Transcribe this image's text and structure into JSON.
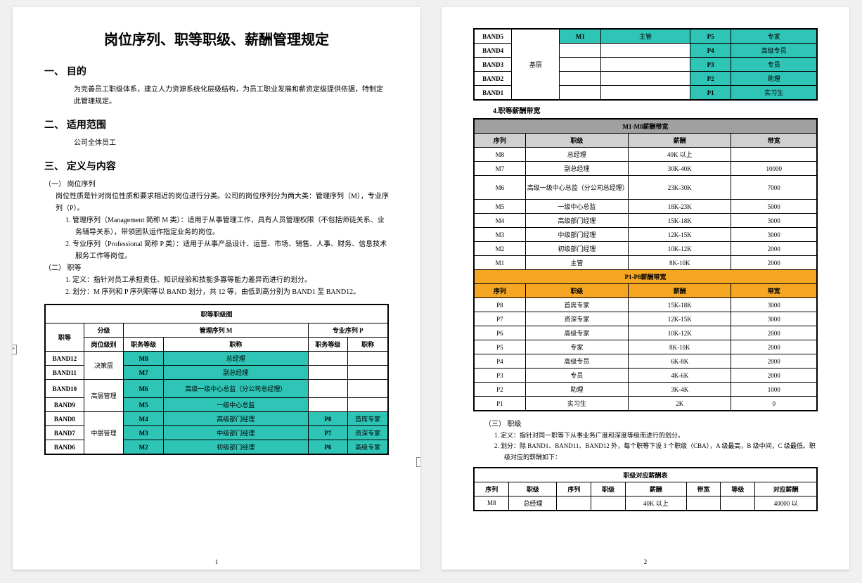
{
  "title": "岗位序列、职等职级、薪酬管理规定",
  "sec1": {
    "h": "一、 目的",
    "p": "为完善员工职级体系，建立人力资源系统化层级结构，为员工职业发展和薪资定级提供依据，特制定此管理规定。"
  },
  "sec2": {
    "h": "二、 适用范围",
    "p": "公司全体员工"
  },
  "sec3": {
    "h": "三、 定义与内容",
    "a_h": "（一） 岗位序列",
    "a_p": "岗位性质是针对岗位性质和要求相近的岗位进行分类。公司的岗位序列分为两大类：管理序列（M），专业序列（P）。",
    "a1": "1. 管理序列（Management 简称 M 类）：适用于从事管理工作，具有人员管理权限（不包括师徒关系、业务辅导关系），带领团队运作指定业务的岗位。",
    "a2": "2. 专业序列（Professional 简称 P 类）：适用于从事产品设计、运营、市场、销售、人事、财务、信息技术服务工作等岗位。",
    "b_h": "（二） 职等",
    "b1": "1. 定义：指针对员工承担责任、知识经验和技能多寡等能力差异而进行的划分。",
    "b2": "2. 划分：M 序列和 P 序列职等以 BAND 划分，共 12 等，由低到高分别为 BAND1 至 BAND12。"
  },
  "tableA": {
    "caption": "职等职级图",
    "h_band": "职等",
    "h_group": "分级",
    "h_mgmt": "管理序列 M",
    "h_prof": "专业序列 P",
    "h_level": "岗位级别",
    "h_jobgrade": "职务等级",
    "h_jobname": "职称",
    "g_decision": "决策层",
    "g_senior": "高层管理",
    "g_mid": "中层管理",
    "g_base": "基层",
    "rows": {
      "b12": {
        "m": "M8",
        "mt": "总经理"
      },
      "b11": {
        "m": "M7",
        "mt": "副总经理"
      },
      "b10": {
        "m": "M6",
        "mt": "高级一级中心总监（分公司总经理）"
      },
      "b9": {
        "m": "M5",
        "mt": "一级中心总监"
      },
      "b8": {
        "m": "M4",
        "mt": "高级部门经理",
        "p": "P8",
        "pt": "首席专家"
      },
      "b7": {
        "m": "M3",
        "mt": "中级部门经理",
        "p": "P7",
        "pt": "资深专家"
      },
      "b6": {
        "m": "M2",
        "mt": "初级部门经理",
        "p": "P6",
        "pt": "高级专家"
      },
      "b5": {
        "m": "M1",
        "mt": "主管",
        "p": "P5",
        "pt": "专家"
      },
      "b4": {
        "p": "P4",
        "pt": "高级专员"
      },
      "b3": {
        "p": "P3",
        "pt": "专员"
      },
      "b2": {
        "p": "P2",
        "pt": "助理"
      },
      "b1": {
        "p": "P1",
        "pt": "实习生"
      }
    },
    "colors": {
      "teal": "#2ec4b6",
      "border": "#000000"
    }
  },
  "sec4cap": "4.职等薪酬带宽",
  "tableB": {
    "title_m": "M1-M8薪酬带宽",
    "title_p": "P1-P8薪酬带宽",
    "h_seq": "序列",
    "h_grade": "职级",
    "h_salary": "薪酬",
    "h_band": "带宽",
    "m": [
      {
        "seq": "M8",
        "grade": "总经理",
        "salary": "40K 以上",
        "band": ""
      },
      {
        "seq": "M7",
        "grade": "副总经理",
        "salary": "30K-40K",
        "band": "10000"
      },
      {
        "seq": "M6",
        "grade": "高级一级中心总监（分公司总经理）",
        "salary": "23K-30K",
        "band": "7000"
      },
      {
        "seq": "M5",
        "grade": "一级中心总监",
        "salary": "18K-23K",
        "band": "5000"
      },
      {
        "seq": "M4",
        "grade": "高级部门经理",
        "salary": "15K-18K",
        "band": "3000"
      },
      {
        "seq": "M3",
        "grade": "中级部门经理",
        "salary": "12K-15K",
        "band": "3000"
      },
      {
        "seq": "M2",
        "grade": "初级部门经理",
        "salary": "10K-12K",
        "band": "2000"
      },
      {
        "seq": "M1",
        "grade": "主管",
        "salary": "8K-10K",
        "band": "2000"
      }
    ],
    "p": [
      {
        "seq": "P8",
        "grade": "首席专家",
        "salary": "15K-18K",
        "band": "3000"
      },
      {
        "seq": "P7",
        "grade": "资深专家",
        "salary": "12K-15K",
        "band": "3000"
      },
      {
        "seq": "P6",
        "grade": "高级专家",
        "salary": "10K-12K",
        "band": "2000"
      },
      {
        "seq": "P5",
        "grade": "专家",
        "salary": "8K-10K",
        "band": "2000"
      },
      {
        "seq": "P4",
        "grade": "高级专员",
        "salary": "6K-8K",
        "band": "2000"
      },
      {
        "seq": "P3",
        "grade": "专员",
        "salary": "4K-6K",
        "band": "2000"
      },
      {
        "seq": "P2",
        "grade": "助理",
        "salary": "3K-4K",
        "band": "1000"
      },
      {
        "seq": "P1",
        "grade": "实习生",
        "salary": "2K",
        "band": "0"
      }
    ],
    "colors": {
      "header_gray": "#a0a0a0",
      "sub_gray": "#d0d0d0",
      "orange": "#f5a623",
      "border": "#000000"
    }
  },
  "sec3c": {
    "h": "（三） 职级",
    "p1": "1. 定义：指针对同一职等下从事业务广度和深度等级而进行的划分。",
    "p2": "2. 划分：除 BAND1、BAND11、BAND12 外，每个职等下设 3 个职级（CBA），A 级最高，B 级中间，C 级最低。职级对应的薪酬如下："
  },
  "tableC": {
    "title": "职级对应薪酬表",
    "h_seq": "序列",
    "h_grade": "职级",
    "h_seq2": "序列",
    "h_grade2": "职级",
    "h_salary": "薪酬",
    "h_band": "带宽",
    "h_lv": "等级",
    "h_pay": "对应薪酬",
    "row1": {
      "seq": "M8",
      "grade": "总经理",
      "salary": "40K 以上",
      "pay": "40000 以"
    }
  },
  "pg1": "1",
  "pg2": "2"
}
